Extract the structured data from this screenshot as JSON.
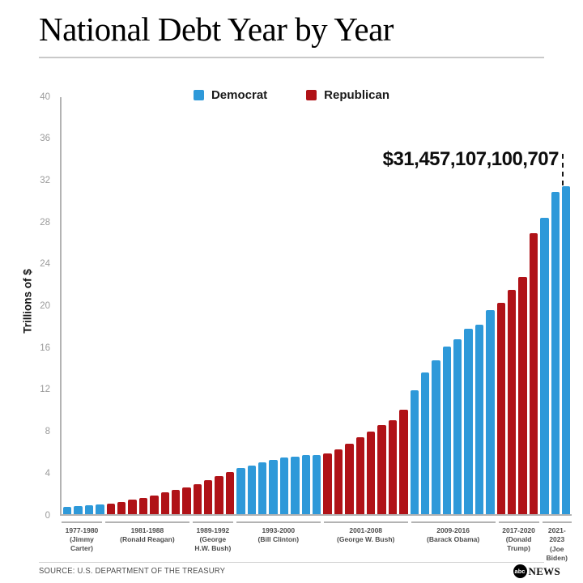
{
  "header": {
    "title": "National Debt Year by Year"
  },
  "legend": [
    {
      "label": "Democrat",
      "color": "#2e99d9"
    },
    {
      "label": "Republican",
      "color": "#b01217"
    }
  ],
  "chart_data": {
    "type": "bar",
    "title": "National Debt Year by Year",
    "xlabel": "",
    "ylabel": "Trillions of $",
    "ylim": [
      0,
      40
    ],
    "yticks": [
      0,
      4,
      8,
      12,
      16,
      20,
      24,
      28,
      32,
      36,
      40
    ],
    "grid": false,
    "legend_position": "top-center",
    "annotation": {
      "text": "$31,457,107,100,707",
      "target_year": 2023,
      "value": 31.457107100707
    },
    "groups": [
      {
        "years": "1977-1980",
        "president": "(Jimmy Carter)",
        "party": "Democrat",
        "x": [
          1977,
          1978,
          1979,
          1980
        ],
        "values": [
          0.7,
          0.77,
          0.83,
          0.91
        ]
      },
      {
        "years": "1981-1988",
        "president": "(Ronald Reagan)",
        "party": "Republican",
        "x": [
          1981,
          1982,
          1983,
          1984,
          1985,
          1986,
          1987,
          1988
        ],
        "values": [
          1.0,
          1.14,
          1.38,
          1.57,
          1.82,
          2.13,
          2.35,
          2.6
        ]
      },
      {
        "years": "1989-1992",
        "president": "(George H.W. Bush)",
        "party": "Republican",
        "x": [
          1989,
          1990,
          1991,
          1992
        ],
        "values": [
          2.86,
          3.23,
          3.67,
          4.06
        ]
      },
      {
        "years": "1993-2000",
        "president": "(Bill Clinton)",
        "party": "Democrat",
        "x": [
          1993,
          1994,
          1995,
          1996,
          1997,
          1998,
          1999,
          2000
        ],
        "values": [
          4.41,
          4.69,
          4.97,
          5.22,
          5.41,
          5.53,
          5.66,
          5.67
        ]
      },
      {
        "years": "2001-2008",
        "president": "(George W. Bush)",
        "party": "Republican",
        "x": [
          2001,
          2002,
          2003,
          2004,
          2005,
          2006,
          2007,
          2008
        ],
        "values": [
          5.81,
          6.23,
          6.78,
          7.38,
          7.93,
          8.51,
          9.01,
          10.02
        ]
      },
      {
        "years": "2009-2016",
        "president": "(Barack Obama)",
        "party": "Democrat",
        "x": [
          2009,
          2010,
          2011,
          2012,
          2013,
          2014,
          2015,
          2016
        ],
        "values": [
          11.91,
          13.56,
          14.79,
          16.07,
          16.74,
          17.82,
          18.15,
          19.57
        ]
      },
      {
        "years": "2017-2020",
        "president": "(Donald Trump)",
        "party": "Republican",
        "x": [
          2017,
          2018,
          2019,
          2020
        ],
        "values": [
          20.24,
          21.52,
          22.72,
          26.95
        ]
      },
      {
        "years": "2021-2023",
        "president": "(Joe Biden)",
        "party": "Democrat",
        "x": [
          2021,
          2022,
          2023
        ],
        "values": [
          28.43,
          30.93,
          31.46
        ]
      }
    ]
  },
  "footer": {
    "source": "SOURCE: U.S. DEPARTMENT OF THE TREASURY",
    "logo_abc": "abc",
    "logo_news": "NEWS"
  }
}
